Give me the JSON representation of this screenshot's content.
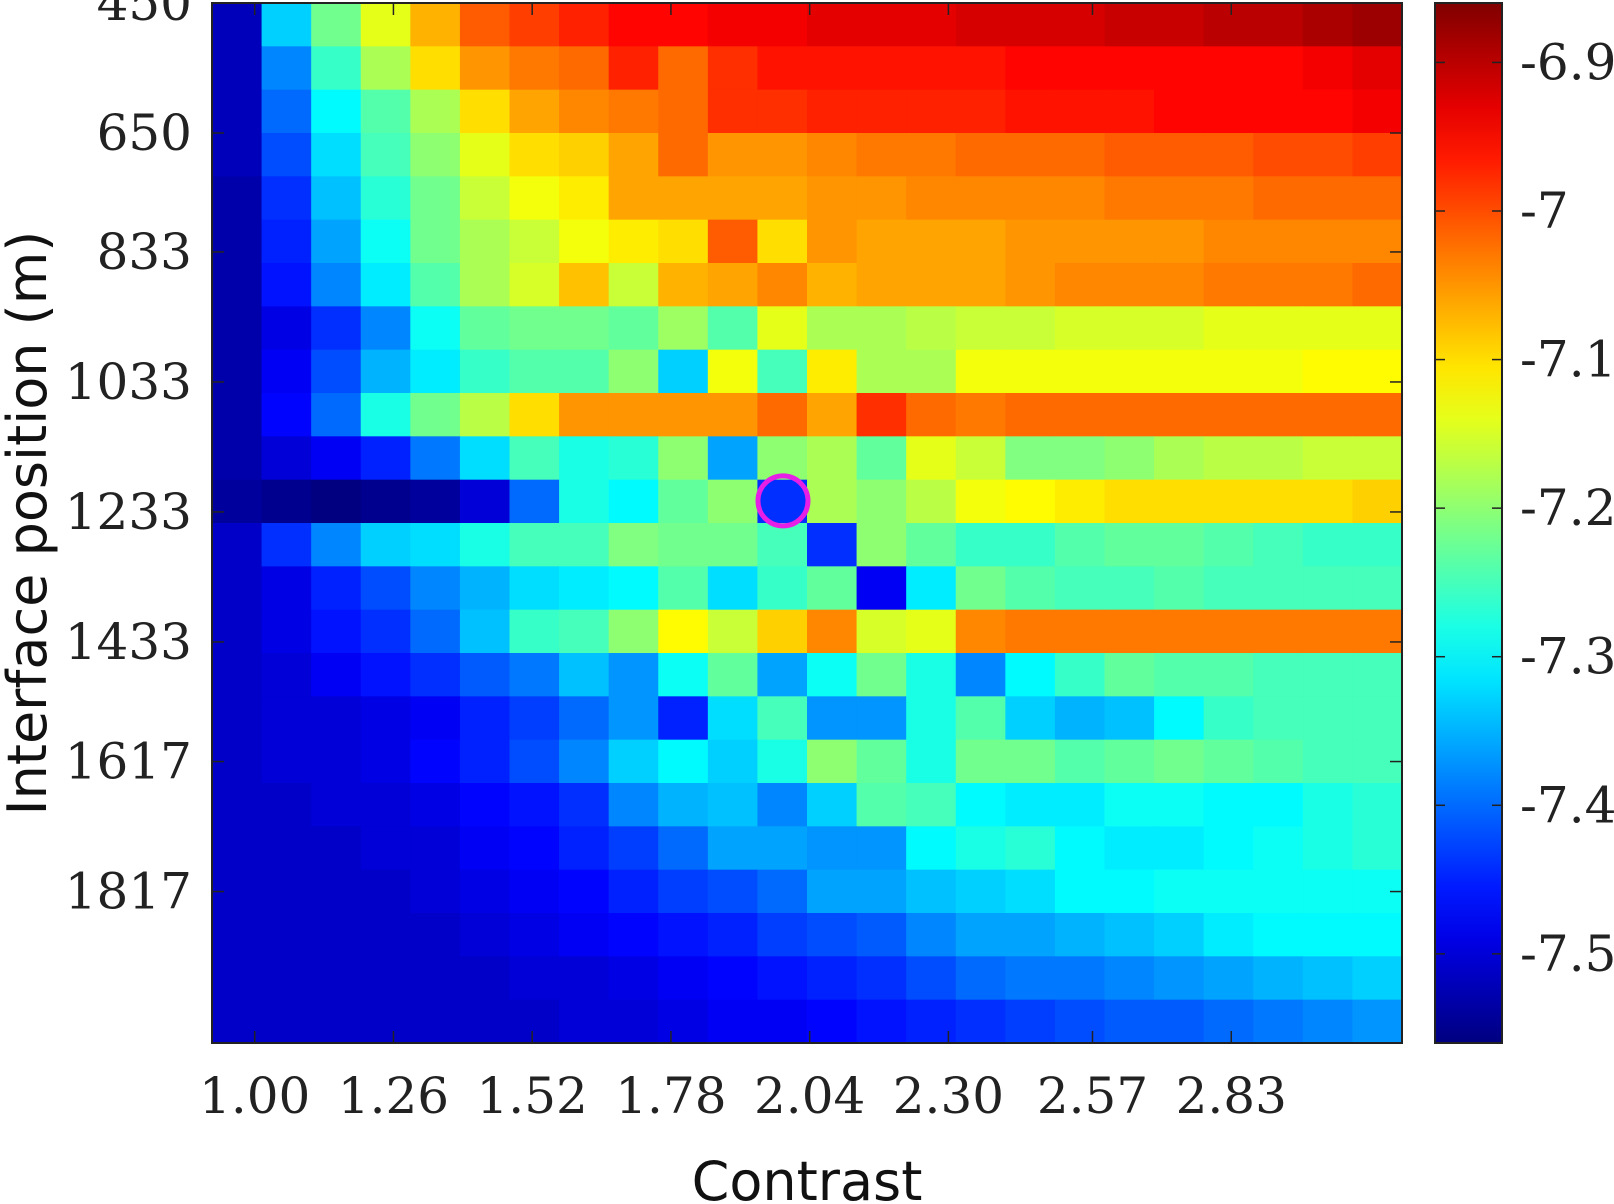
{
  "chart_data": {
    "type": "heatmap",
    "xlabel": "Contrast",
    "ylabel": "Interface position (m)",
    "x_tick_labels": [
      "1.00",
      "1.26",
      "1.52",
      "1.78",
      "2.04",
      "2.30",
      "2.57",
      "2.83"
    ],
    "y_tick_labels": [
      "450",
      "650",
      "833",
      "1033",
      "1233",
      "1433",
      "1617",
      "1817"
    ],
    "x_range": [
      0.92,
      3.15
    ],
    "y_range": [
      450,
      2050
    ],
    "colorbar": {
      "colormap": "jet",
      "range": [
        -7.56,
        -6.86
      ],
      "tick_labels": [
        "-6.9",
        "-7",
        "-7.1",
        "-7.2",
        "-7.3",
        "-7.4",
        "-7.5"
      ]
    },
    "marker": {
      "shape": "circle",
      "color": "#e61ee6",
      "x": 1.99,
      "y": 1216
    },
    "grid_columns": 24,
    "grid_rows": 24,
    "rows": [
      [
        -7.52,
        -7.33,
        -7.22,
        -7.14,
        -7.07,
        -7.01,
        -6.99,
        -6.97,
        -6.95,
        -6.95,
        -6.94,
        -6.94,
        -6.93,
        -6.93,
        -6.93,
        -6.92,
        -6.92,
        -6.92,
        -6.91,
        -6.91,
        -6.9,
        -6.9,
        -6.89,
        -6.88
      ],
      [
        -7.52,
        -7.38,
        -7.26,
        -7.18,
        -7.1,
        -7.05,
        -7.03,
        -7.02,
        -6.97,
        -7.02,
        -6.98,
        -6.96,
        -6.96,
        -6.96,
        -6.96,
        -6.96,
        -6.95,
        -6.95,
        -6.95,
        -6.95,
        -6.95,
        -6.95,
        -6.94,
        -6.93
      ],
      [
        -7.52,
        -7.4,
        -7.3,
        -7.24,
        -7.18,
        -7.1,
        -7.06,
        -7.04,
        -7.03,
        -7.02,
        -6.98,
        -6.98,
        -6.97,
        -6.97,
        -6.97,
        -6.97,
        -6.96,
        -6.96,
        -6.96,
        -6.95,
        -6.95,
        -6.95,
        -6.95,
        -6.94
      ],
      [
        -7.52,
        -7.42,
        -7.32,
        -7.25,
        -7.2,
        -7.14,
        -7.1,
        -7.09,
        -7.06,
        -7.02,
        -7.05,
        -7.05,
        -7.04,
        -7.03,
        -7.03,
        -7.02,
        -7.02,
        -7.02,
        -7.01,
        -7.01,
        -7.01,
        -7.0,
        -7.0,
        -6.99
      ],
      [
        -7.53,
        -7.44,
        -7.34,
        -7.27,
        -7.22,
        -7.16,
        -7.13,
        -7.11,
        -7.06,
        -7.06,
        -7.06,
        -7.06,
        -7.05,
        -7.05,
        -7.04,
        -7.04,
        -7.04,
        -7.04,
        -7.03,
        -7.03,
        -7.03,
        -7.02,
        -7.02,
        -7.02
      ],
      [
        -7.53,
        -7.45,
        -7.36,
        -7.29,
        -7.22,
        -7.18,
        -7.16,
        -7.13,
        -7.11,
        -7.1,
        -7.01,
        -7.1,
        -7.05,
        -7.06,
        -7.06,
        -7.06,
        -7.05,
        -7.05,
        -7.05,
        -7.05,
        -7.04,
        -7.04,
        -7.04,
        -7.04
      ],
      [
        -7.53,
        -7.46,
        -7.38,
        -7.31,
        -7.24,
        -7.18,
        -7.15,
        -7.08,
        -7.16,
        -7.07,
        -7.06,
        -7.04,
        -7.07,
        -7.06,
        -7.06,
        -7.06,
        -7.05,
        -7.04,
        -7.04,
        -7.04,
        -7.03,
        -7.03,
        -7.03,
        -7.02
      ],
      [
        -7.53,
        -7.49,
        -7.44,
        -7.38,
        -7.29,
        -7.23,
        -7.22,
        -7.22,
        -7.23,
        -7.19,
        -7.24,
        -7.14,
        -7.18,
        -7.18,
        -7.17,
        -7.16,
        -7.16,
        -7.15,
        -7.15,
        -7.15,
        -7.14,
        -7.14,
        -7.14,
        -7.14
      ],
      [
        -7.53,
        -7.48,
        -7.42,
        -7.35,
        -7.31,
        -7.26,
        -7.24,
        -7.24,
        -7.2,
        -7.33,
        -7.13,
        -7.25,
        -7.11,
        -7.18,
        -7.18,
        -7.13,
        -7.13,
        -7.13,
        -7.13,
        -7.13,
        -7.13,
        -7.13,
        -7.12,
        -7.12
      ],
      [
        -7.53,
        -7.47,
        -7.4,
        -7.28,
        -7.22,
        -7.17,
        -7.1,
        -7.05,
        -7.05,
        -7.05,
        -7.05,
        -7.02,
        -7.06,
        -6.98,
        -7.02,
        -7.03,
        -7.02,
        -7.02,
        -7.02,
        -7.02,
        -7.02,
        -7.02,
        -7.02,
        -7.02
      ],
      [
        -7.53,
        -7.5,
        -7.48,
        -7.45,
        -7.39,
        -7.32,
        -7.25,
        -7.28,
        -7.27,
        -7.2,
        -7.36,
        -7.2,
        -7.18,
        -7.23,
        -7.14,
        -7.16,
        -7.21,
        -7.21,
        -7.2,
        -7.18,
        -7.17,
        -7.17,
        -7.16,
        -7.16
      ],
      [
        -7.54,
        -7.55,
        -7.56,
        -7.55,
        -7.54,
        -7.5,
        -7.4,
        -7.28,
        -7.3,
        -7.23,
        -7.2,
        -7.44,
        -7.18,
        -7.2,
        -7.17,
        -7.13,
        -7.12,
        -7.11,
        -7.1,
        -7.1,
        -7.1,
        -7.1,
        -7.1,
        -7.09
      ],
      [
        -7.51,
        -7.44,
        -7.38,
        -7.33,
        -7.32,
        -7.28,
        -7.25,
        -7.25,
        -7.21,
        -7.22,
        -7.22,
        -7.25,
        -7.44,
        -7.2,
        -7.23,
        -7.26,
        -7.26,
        -7.24,
        -7.23,
        -7.23,
        -7.24,
        -7.25,
        -7.26,
        -7.26
      ],
      [
        -7.51,
        -7.49,
        -7.45,
        -7.42,
        -7.38,
        -7.35,
        -7.32,
        -7.31,
        -7.3,
        -7.24,
        -7.32,
        -7.26,
        -7.23,
        -7.48,
        -7.31,
        -7.22,
        -7.24,
        -7.25,
        -7.25,
        -7.24,
        -7.25,
        -7.25,
        -7.25,
        -7.25
      ],
      [
        -7.51,
        -7.49,
        -7.46,
        -7.44,
        -7.4,
        -7.34,
        -7.26,
        -7.25,
        -7.2,
        -7.12,
        -7.16,
        -7.09,
        -7.04,
        -7.15,
        -7.14,
        -7.04,
        -7.03,
        -7.03,
        -7.03,
        -7.03,
        -7.03,
        -7.03,
        -7.03,
        -7.03
      ],
      [
        -7.51,
        -7.5,
        -7.48,
        -7.46,
        -7.44,
        -7.41,
        -7.39,
        -7.34,
        -7.37,
        -7.29,
        -7.23,
        -7.36,
        -7.29,
        -7.22,
        -7.28,
        -7.38,
        -7.3,
        -7.26,
        -7.23,
        -7.24,
        -7.24,
        -7.25,
        -7.25,
        -7.25
      ],
      [
        -7.51,
        -7.5,
        -7.5,
        -7.49,
        -7.48,
        -7.45,
        -7.43,
        -7.4,
        -7.37,
        -7.45,
        -7.32,
        -7.25,
        -7.37,
        -7.37,
        -7.28,
        -7.24,
        -7.33,
        -7.35,
        -7.34,
        -7.3,
        -7.26,
        -7.25,
        -7.25,
        -7.25
      ],
      [
        -7.51,
        -7.5,
        -7.5,
        -7.49,
        -7.47,
        -7.45,
        -7.42,
        -7.38,
        -7.33,
        -7.3,
        -7.33,
        -7.28,
        -7.2,
        -7.23,
        -7.28,
        -7.22,
        -7.22,
        -7.24,
        -7.23,
        -7.22,
        -7.23,
        -7.24,
        -7.25,
        -7.25
      ],
      [
        -7.51,
        -7.51,
        -7.5,
        -7.5,
        -7.49,
        -7.47,
        -7.46,
        -7.44,
        -7.38,
        -7.35,
        -7.34,
        -7.38,
        -7.33,
        -7.24,
        -7.25,
        -7.3,
        -7.31,
        -7.31,
        -7.29,
        -7.29,
        -7.3,
        -7.3,
        -7.28,
        -7.27
      ],
      [
        -7.51,
        -7.51,
        -7.51,
        -7.5,
        -7.5,
        -7.48,
        -7.47,
        -7.45,
        -7.43,
        -7.4,
        -7.36,
        -7.36,
        -7.37,
        -7.37,
        -7.3,
        -7.28,
        -7.27,
        -7.3,
        -7.31,
        -7.31,
        -7.3,
        -7.29,
        -7.28,
        -7.27
      ],
      [
        -7.51,
        -7.51,
        -7.51,
        -7.51,
        -7.5,
        -7.49,
        -7.48,
        -7.47,
        -7.45,
        -7.43,
        -7.42,
        -7.4,
        -7.36,
        -7.36,
        -7.34,
        -7.33,
        -7.32,
        -7.3,
        -7.3,
        -7.29,
        -7.29,
        -7.29,
        -7.29,
        -7.29
      ],
      [
        -7.51,
        -7.51,
        -7.51,
        -7.51,
        -7.51,
        -7.5,
        -7.49,
        -7.48,
        -7.47,
        -7.46,
        -7.45,
        -7.43,
        -7.42,
        -7.41,
        -7.38,
        -7.36,
        -7.36,
        -7.35,
        -7.34,
        -7.33,
        -7.31,
        -7.3,
        -7.3,
        -7.3
      ],
      [
        -7.51,
        -7.51,
        -7.51,
        -7.51,
        -7.51,
        -7.51,
        -7.5,
        -7.5,
        -7.49,
        -7.48,
        -7.47,
        -7.46,
        -7.45,
        -7.44,
        -7.42,
        -7.4,
        -7.39,
        -7.39,
        -7.38,
        -7.37,
        -7.36,
        -7.35,
        -7.34,
        -7.33
      ],
      [
        -7.51,
        -7.51,
        -7.51,
        -7.51,
        -7.51,
        -7.51,
        -7.51,
        -7.5,
        -7.5,
        -7.49,
        -7.48,
        -7.48,
        -7.47,
        -7.46,
        -7.45,
        -7.44,
        -7.43,
        -7.42,
        -7.41,
        -7.41,
        -7.4,
        -7.39,
        -7.38,
        -7.37
      ]
    ]
  }
}
